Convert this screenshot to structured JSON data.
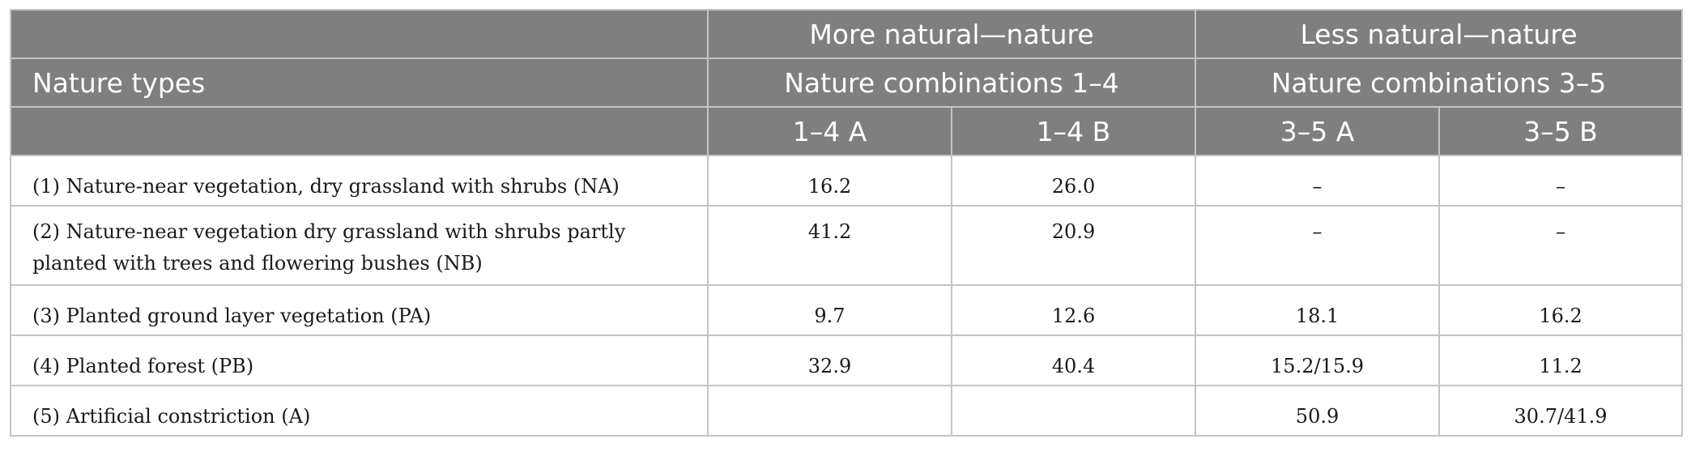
{
  "table": {
    "header": {
      "row1": {
        "group_more": "More natural—nature",
        "group_less": "Less natural—nature"
      },
      "row2": {
        "nature_types": "Nature types",
        "combo_more": "Nature combinations 1–4",
        "combo_less": "Nature combinations 3–5"
      },
      "row3": {
        "col_1_4_a": "1–4 A",
        "col_1_4_b": "1–4 B",
        "col_3_5_a": "3–5 A",
        "col_3_5_b": "3–5 B"
      }
    },
    "rows": [
      {
        "type": "(1) Nature-near vegetation, dry grassland with shrubs (NA)",
        "a14": "16.2",
        "b14": "26.0",
        "a35": "–",
        "b35": "–"
      },
      {
        "type": "(2) Nature-near vegetation dry grassland with shrubs partly planted with trees and flowering bushes (NB)",
        "a14": "41.2",
        "b14": "20.9",
        "a35": "–",
        "b35": "–"
      },
      {
        "type": "(3) Planted ground layer vegetation (PA)",
        "a14": "9.7",
        "b14": "12.6",
        "a35": "18.1",
        "b35": "16.2"
      },
      {
        "type": "(4) Planted forest (PB)",
        "a14": "32.9",
        "b14": "40.4",
        "a35": "15.2/15.9",
        "b35": "11.2"
      },
      {
        "type": "(5) Artificial constriction (A)",
        "a14": "",
        "b14": "",
        "a35": "50.9",
        "b35": "30.7/41.9"
      }
    ]
  }
}
